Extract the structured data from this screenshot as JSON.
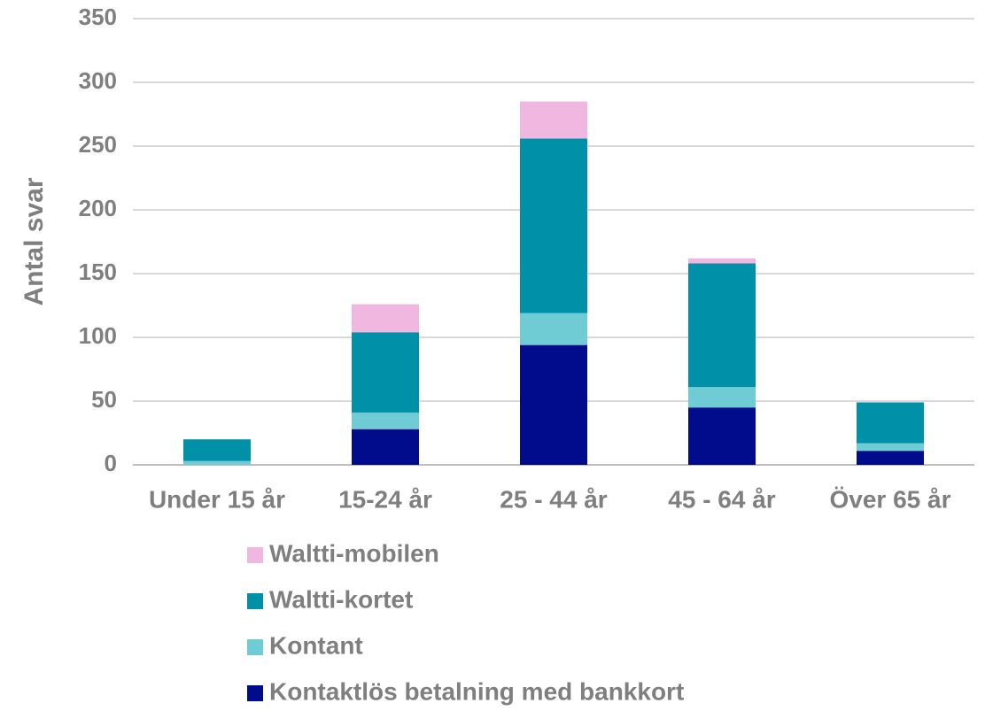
{
  "chart_data": {
    "type": "stacked_bar",
    "y_label": "Antal svar",
    "categories": [
      "Under 15 år",
      "15-24 år",
      "25 - 44 år",
      "45 - 64 år",
      "Över 65 år"
    ],
    "series": [
      {
        "name": "Kontaktlös betalning med bankkort",
        "color": "#000c8c",
        "values": [
          0,
          28,
          94,
          45,
          11
        ]
      },
      {
        "name": "Kontant",
        "color": "#70ccd4",
        "values": [
          3,
          13,
          25,
          16,
          6
        ]
      },
      {
        "name": "Waltti-kortet",
        "color": "#0090a8",
        "values": [
          17,
          63,
          137,
          97,
          32
        ]
      },
      {
        "name": "Waltti-mobilen",
        "color": "#f0b8e0",
        "values": [
          0,
          22,
          29,
          4,
          0
        ]
      }
    ],
    "ylim": [
      0,
      350
    ],
    "yticks": [
      0,
      50,
      100,
      150,
      200,
      250,
      300,
      350
    ],
    "grid": true
  }
}
